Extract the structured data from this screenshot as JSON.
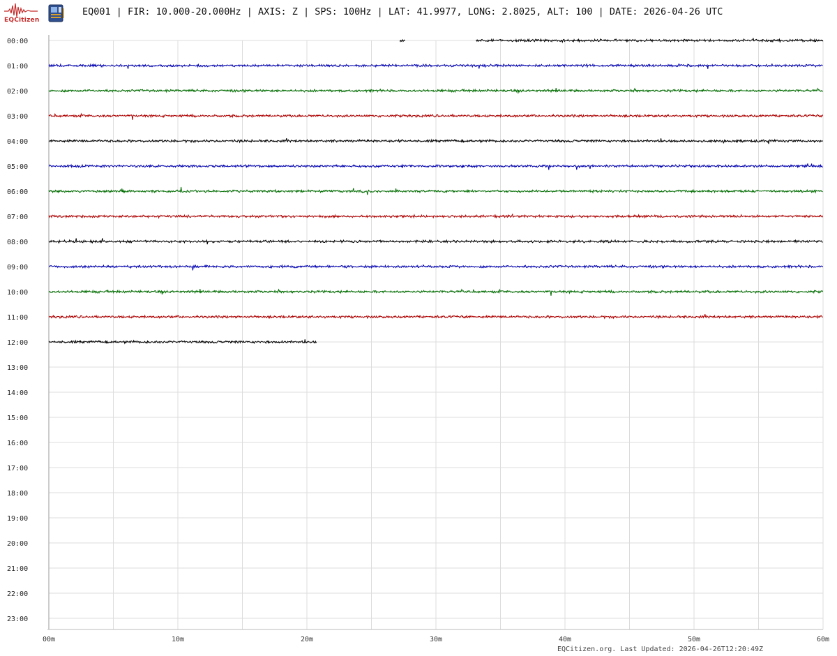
{
  "header": {
    "logo_text": "EQCitizen",
    "title": "EQ001 | FIR: 10.000-20.000Hz | AXIS: Z | SPS: 100Hz | LAT: 41.9977, LONG: 2.8025, ALT: 100 | DATE: 2026-04-26 UTC"
  },
  "footer": {
    "text": "EQCitizen.org. Last Updated: 2026-04-26T12:20:49Z"
  },
  "chart_data": {
    "type": "line",
    "title": "",
    "xlabel": "",
    "ylabel": "",
    "xlim": [
      0,
      60
    ],
    "x_ticks": [
      "00m",
      "10m",
      "20m",
      "30m",
      "40m",
      "50m",
      "60m"
    ],
    "y_ticks": [
      "00:00",
      "01:00",
      "02:00",
      "03:00",
      "04:00",
      "05:00",
      "06:00",
      "07:00",
      "08:00",
      "09:00",
      "10:00",
      "11:00",
      "12:00",
      "13:00",
      "14:00",
      "15:00",
      "16:00",
      "17:00",
      "18:00",
      "19:00",
      "20:00",
      "21:00",
      "22:00",
      "23:00"
    ],
    "grid": true,
    "series_colors": [
      "#000000",
      "#0000b0",
      "#006e00",
      "#b00000"
    ],
    "traces": [
      {
        "hour": "00:00",
        "segments": [
          [
            27.2,
            27.6
          ],
          [
            33.1,
            60
          ]
        ],
        "color": "#000000"
      },
      {
        "hour": "01:00",
        "segments": [
          [
            0,
            60
          ]
        ],
        "color": "#0000b0"
      },
      {
        "hour": "02:00",
        "segments": [
          [
            0,
            60
          ]
        ],
        "color": "#006e00"
      },
      {
        "hour": "03:00",
        "segments": [
          [
            0,
            60
          ]
        ],
        "color": "#b00000"
      },
      {
        "hour": "04:00",
        "segments": [
          [
            0,
            60
          ]
        ],
        "color": "#000000"
      },
      {
        "hour": "05:00",
        "segments": [
          [
            0,
            60
          ]
        ],
        "color": "#0000b0"
      },
      {
        "hour": "06:00",
        "segments": [
          [
            0,
            60
          ]
        ],
        "color": "#006e00"
      },
      {
        "hour": "07:00",
        "segments": [
          [
            0,
            60
          ]
        ],
        "color": "#b00000"
      },
      {
        "hour": "08:00",
        "segments": [
          [
            0,
            60
          ]
        ],
        "color": "#000000"
      },
      {
        "hour": "09:00",
        "segments": [
          [
            0,
            60
          ]
        ],
        "color": "#0000b0"
      },
      {
        "hour": "10:00",
        "segments": [
          [
            0,
            60
          ]
        ],
        "color": "#006e00"
      },
      {
        "hour": "11:00",
        "segments": [
          [
            0,
            60
          ]
        ],
        "color": "#b00000"
      },
      {
        "hour": "12:00",
        "segments": [
          [
            0,
            20.8
          ]
        ],
        "color": "#000000"
      }
    ]
  }
}
